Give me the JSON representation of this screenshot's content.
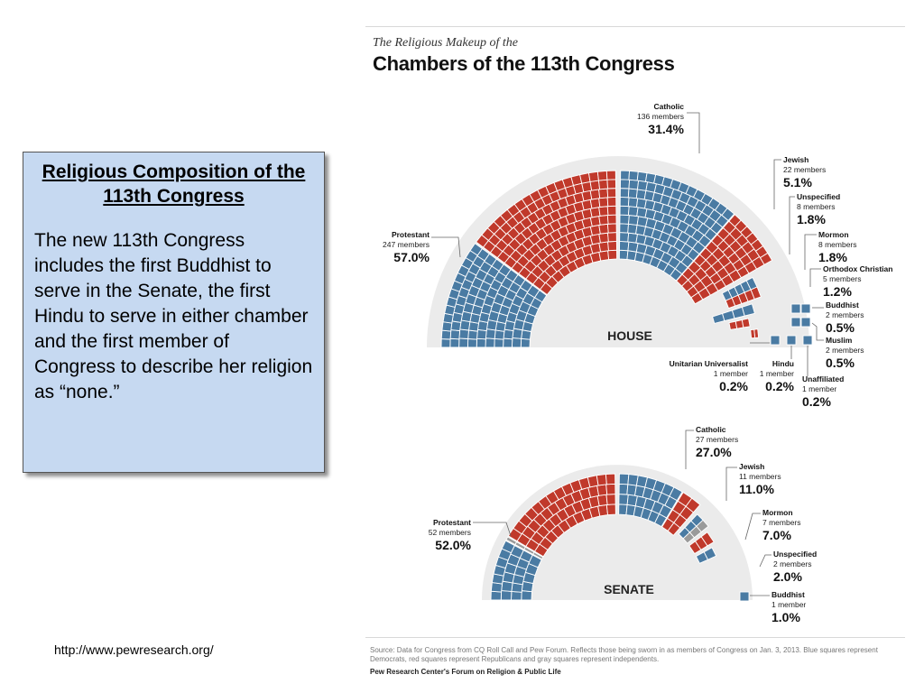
{
  "slide": {
    "heading": "Religious Composition of the 113th Congress",
    "body": "The new 113th Congress includes the first Buddhist to serve in the Senate, the first Hindu to serve in either chamber and the first member of Congress to describe her religion as “none.”",
    "url": "http://www.pewresearch.org/"
  },
  "chart_data": {
    "type": "parliament",
    "subtitle": "The Religious Makeup of the",
    "title": "Chambers of the 113th Congress",
    "source": "Source: Data for Congress from CQ Roll Call and Pew Forum. Reflects those being sworn in as members of Congress on Jan. 3, 2013. Blue squares represent Democrats, red squares represent Republicans and gray squares represent independents.",
    "credit": "Pew Research Center's Forum on Religion & Public Life",
    "colors": {
      "democrat": "#4a7ba3",
      "republican": "#c0392b",
      "independent": "#9a9a9a",
      "background_arc": "#ebebeb"
    },
    "chambers": [
      {
        "name": "HOUSE",
        "groups": [
          {
            "name": "Protestant",
            "count": "247 members",
            "percent": "57.0%"
          },
          {
            "name": "Catholic",
            "count": "136 members",
            "percent": "31.4%"
          },
          {
            "name": "Jewish",
            "count": "22 members",
            "percent": "5.1%"
          },
          {
            "name": "Unspecified",
            "count": "8 members",
            "percent": "1.8%"
          },
          {
            "name": "Mormon",
            "count": "8 members",
            "percent": "1.8%"
          },
          {
            "name": "Orthodox Christian",
            "count": "5 members",
            "percent": "1.2%"
          },
          {
            "name": "Buddhist",
            "count": "2 members",
            "percent": "0.5%"
          },
          {
            "name": "Muslim",
            "count": "2 members",
            "percent": "0.5%"
          },
          {
            "name": "Unitarian Universalist",
            "count": "1 member",
            "percent": "0.2%"
          },
          {
            "name": "Hindu",
            "count": "1 member",
            "percent": "0.2%"
          },
          {
            "name": "Unaffiliated",
            "count": "1 member",
            "percent": "0.2%"
          }
        ]
      },
      {
        "name": "SENATE",
        "groups": [
          {
            "name": "Protestant",
            "count": "52 members",
            "percent": "52.0%"
          },
          {
            "name": "Catholic",
            "count": "27 members",
            "percent": "27.0%"
          },
          {
            "name": "Jewish",
            "count": "11 members",
            "percent": "11.0%"
          },
          {
            "name": "Mormon",
            "count": "7 members",
            "percent": "7.0%"
          },
          {
            "name": "Unspecified",
            "count": "2 members",
            "percent": "2.0%"
          },
          {
            "name": "Buddhist",
            "count": "1 member",
            "percent": "1.0%"
          }
        ]
      }
    ]
  }
}
